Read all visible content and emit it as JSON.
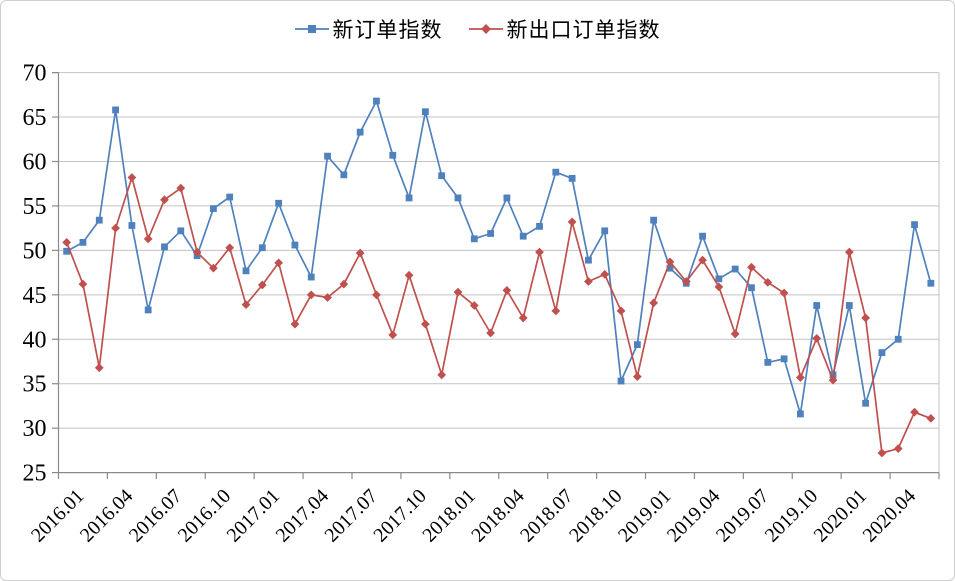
{
  "window": {
    "background": "#ffffff",
    "border_color": "#cfcfcf"
  },
  "chart_data": {
    "type": "line",
    "title": "",
    "xlabel": "",
    "ylabel": "",
    "ylim": [
      25,
      70
    ],
    "y_ticks": [
      25,
      30,
      35,
      40,
      45,
      50,
      55,
      60,
      65,
      70
    ],
    "grid": true,
    "legend_position": "top",
    "x": [
      "2016.01",
      "2016.02",
      "2016.03",
      "2016.04",
      "2016.05",
      "2016.06",
      "2016.07",
      "2016.08",
      "2016.09",
      "2016.10",
      "2016.11",
      "2016.12",
      "2017.01",
      "2017.02",
      "2017.03",
      "2017.04",
      "2017.05",
      "2017.06",
      "2017.07",
      "2017.08",
      "2017.09",
      "2017.10",
      "2017.11",
      "2017.12",
      "2018.01",
      "2018.02",
      "2018.03",
      "2018.04",
      "2018.05",
      "2018.06",
      "2018.07",
      "2018.08",
      "2018.09",
      "2018.10",
      "2018.11",
      "2018.12",
      "2019.01",
      "2019.02",
      "2019.03",
      "2019.04",
      "2019.05",
      "2019.06",
      "2019.07",
      "2019.08",
      "2019.09",
      "2019.10",
      "2019.11",
      "2019.12",
      "2020.01",
      "2020.02",
      "2020.03",
      "2020.04",
      "2020.05",
      "2020.06"
    ],
    "x_tick_labels": [
      "2016.01",
      "2016.04",
      "2016.07",
      "2016.10",
      "2017.01",
      "2017.04",
      "2017.07",
      "2017.10",
      "2018.01",
      "2018.04",
      "2018.07",
      "2018.10",
      "2019.01",
      "2019.04",
      "2019.07",
      "2019.10",
      "2020.01",
      "2020.04"
    ],
    "series": [
      {
        "name": "新订单指数",
        "color": "#4F81BD",
        "marker": "square",
        "values": [
          49.9,
          50.9,
          53.4,
          65.8,
          52.8,
          43.3,
          50.4,
          52.2,
          49.4,
          54.7,
          56.0,
          47.7,
          50.3,
          55.3,
          50.6,
          47.0,
          60.6,
          58.5,
          63.3,
          66.8,
          60.7,
          55.9,
          65.6,
          58.4,
          55.9,
          51.3,
          51.9,
          55.9,
          51.6,
          52.7,
          58.8,
          58.1,
          48.9,
          52.2,
          35.3,
          39.4,
          53.4,
          48.0,
          46.3,
          51.6,
          46.8,
          47.9,
          45.8,
          37.4,
          37.8,
          31.6,
          43.8,
          36.0,
          43.8,
          32.8,
          38.5,
          40.0,
          52.9,
          46.3
        ]
      },
      {
        "name": "新出口订单指数",
        "color": "#C0504D",
        "marker": "diamond",
        "values": [
          50.9,
          46.2,
          36.8,
          52.5,
          58.2,
          51.3,
          55.7,
          57.0,
          49.8,
          48.0,
          50.3,
          43.9,
          46.1,
          48.6,
          41.7,
          45.0,
          44.7,
          46.2,
          49.7,
          45.0,
          40.5,
          47.2,
          41.7,
          36.0,
          45.3,
          43.8,
          40.7,
          45.5,
          42.4,
          49.8,
          43.2,
          53.2,
          46.5,
          47.3,
          43.2,
          35.8,
          44.1,
          48.7,
          46.5,
          48.9,
          45.9,
          40.6,
          48.1,
          46.4,
          45.2,
          35.7,
          40.1,
          35.4,
          49.8,
          42.4,
          27.2,
          27.7,
          31.8,
          31.1
        ]
      }
    ],
    "colors": {
      "gridline": "#c3c3c3",
      "axis": "#8a8a8a",
      "tick": "#8a8a8a",
      "text": "#000000"
    }
  }
}
